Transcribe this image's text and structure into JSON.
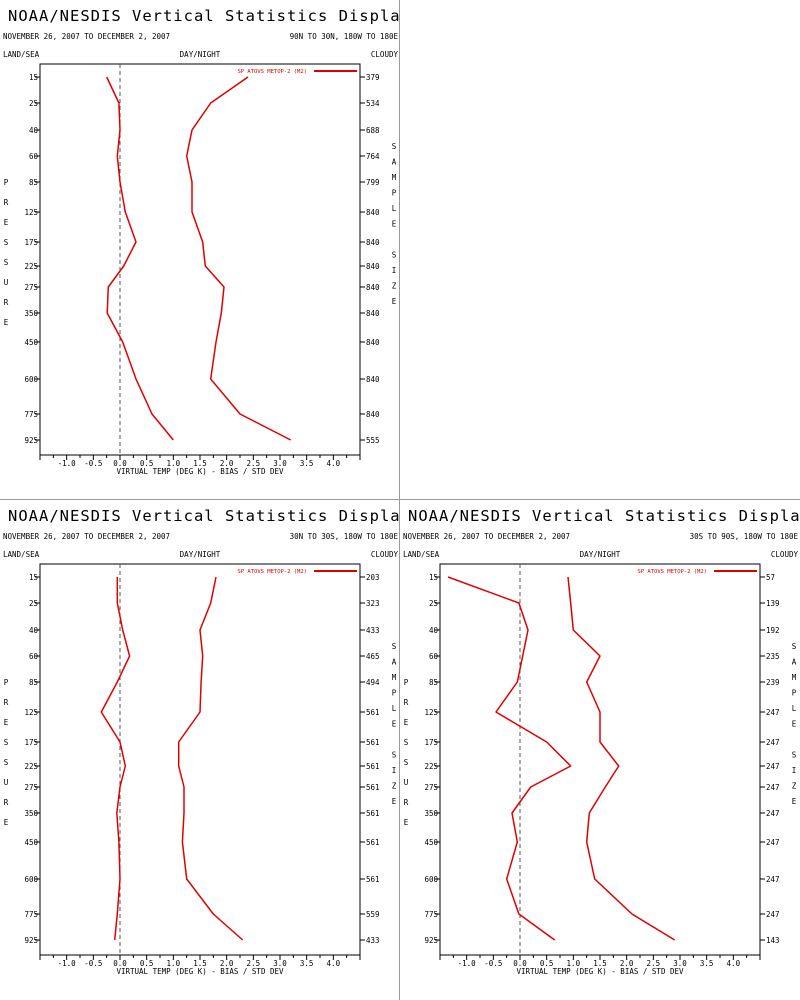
{
  "page": {
    "title": "NOAA/NESDIS Vertical Statistics Display",
    "date_range": "NOVEMBER 26, 2007 TO DECEMBER 2, 2007",
    "left_corner_label": "LAND/SEA",
    "middle_label": "DAY/NIGHT",
    "right_corner_label": "CLOUDY",
    "x_axis_label": "VIRTUAL TEMP (DEG K) - BIAS / STD DEV",
    "left_axis_letters": [
      "P",
      "R",
      "E",
      "S",
      "S",
      "U",
      "R",
      "E"
    ],
    "right_axis_letters": [
      "S",
      "A",
      "M",
      "P",
      "L",
      "E",
      "",
      "S",
      "I",
      "Z",
      "E"
    ],
    "legend_entry": "SP ATOVS METOP-2 (M2)",
    "line_color": "#e00000"
  },
  "chart_data": [
    {
      "type": "line",
      "region": "90N TO 30N, 180W TO 180E",
      "pressure_levels": [
        15,
        25,
        40,
        60,
        85,
        125,
        175,
        225,
        275,
        350,
        450,
        600,
        775,
        925
      ],
      "xlim": [
        -1.5,
        4.5
      ],
      "x_ticks": [
        "-1.0",
        "-0.5",
        "0.0",
        "0.5",
        "1.0",
        "1.5",
        "2.0",
        "2.5",
        "3.0",
        "3.5",
        "4.0"
      ],
      "series": [
        {
          "name": "BIAS",
          "values": [
            -0.25,
            -0.02,
            0.0,
            -0.05,
            0.0,
            0.1,
            0.3,
            0.07,
            -0.22,
            -0.24,
            0.05,
            0.3,
            0.6,
            1.0
          ]
        },
        {
          "name": "STD DEV",
          "values": [
            2.4,
            1.7,
            1.35,
            1.25,
            1.35,
            1.35,
            1.55,
            1.6,
            1.95,
            1.9,
            1.8,
            1.7,
            2.25,
            3.2
          ]
        }
      ],
      "sample_size": [
        379,
        534,
        688,
        764,
        799,
        840,
        840,
        840,
        840,
        840,
        840,
        840,
        840,
        555
      ]
    },
    {
      "type": "line",
      "region": "30N TO 30S, 180W TO 180E",
      "pressure_levels": [
        15,
        25,
        40,
        60,
        85,
        125,
        175,
        225,
        275,
        350,
        450,
        600,
        775,
        925
      ],
      "xlim": [
        -1.5,
        4.5
      ],
      "x_ticks": [
        "-1.0",
        "-0.5",
        "0.0",
        "0.5",
        "1.0",
        "1.5",
        "2.0",
        "2.5",
        "3.0",
        "3.5",
        "4.0"
      ],
      "series": [
        {
          "name": "BIAS",
          "values": [
            -0.05,
            -0.05,
            0.05,
            0.18,
            -0.05,
            -0.35,
            0.0,
            0.1,
            0.0,
            -0.06,
            -0.02,
            0.0,
            -0.05,
            -0.1
          ]
        },
        {
          "name": "STD DEV",
          "values": [
            1.8,
            1.7,
            1.5,
            1.55,
            1.52,
            1.5,
            1.1,
            1.1,
            1.2,
            1.2,
            1.17,
            1.25,
            1.75,
            2.3
          ]
        }
      ],
      "sample_size": [
        203,
        323,
        433,
        465,
        494,
        561,
        561,
        561,
        561,
        561,
        561,
        561,
        559,
        433
      ]
    },
    {
      "type": "line",
      "region": "30S TO 90S, 180W TO 180E",
      "pressure_levels": [
        15,
        25,
        40,
        60,
        85,
        125,
        175,
        225,
        275,
        350,
        450,
        600,
        775,
        925
      ],
      "xlim": [
        -1.5,
        4.5
      ],
      "x_ticks": [
        "-1.0",
        "-0.5",
        "0.0",
        "0.5",
        "1.0",
        "1.5",
        "2.0",
        "2.5",
        "3.0",
        "3.5",
        "4.0"
      ],
      "series": [
        {
          "name": "BIAS",
          "values": [
            -1.35,
            -0.02,
            0.15,
            0.05,
            -0.05,
            -0.45,
            0.5,
            0.95,
            0.2,
            -0.15,
            -0.05,
            -0.25,
            -0.02,
            0.65
          ]
        },
        {
          "name": "STD DEV",
          "values": [
            0.9,
            0.95,
            1.0,
            1.5,
            1.25,
            1.5,
            1.5,
            1.85,
            1.6,
            1.3,
            1.25,
            1.4,
            2.1,
            2.9
          ]
        }
      ],
      "sample_size": [
        57,
        139,
        192,
        235,
        239,
        247,
        247,
        247,
        247,
        247,
        247,
        247,
        247,
        143
      ]
    }
  ]
}
